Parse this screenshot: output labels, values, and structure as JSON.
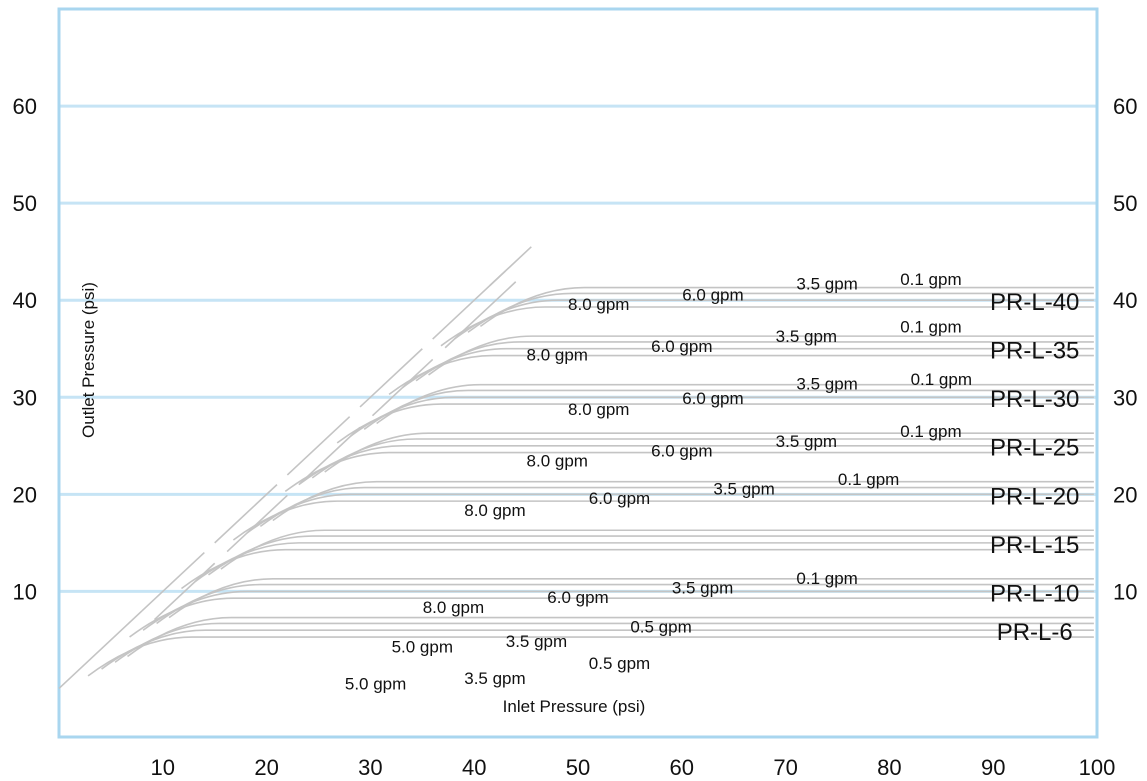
{
  "chart_data": {
    "type": "line",
    "title": "",
    "xlabel": "Inlet Pressure (psi)",
    "ylabel": "Outlet Pressure (psi)",
    "xlim": [
      0,
      100
    ],
    "ylim": [
      -5,
      70
    ],
    "x_ticks": [
      10,
      20,
      30,
      40,
      50,
      60,
      70,
      80,
      90,
      100
    ],
    "y_ticks": [
      10,
      20,
      30,
      40,
      50,
      60
    ],
    "y_ticks_right": [
      10,
      20,
      30,
      40,
      50,
      60
    ],
    "grid": true,
    "series": [
      {
        "name": "PR-L-6",
        "setpoint": 6,
        "flows": [
          {
            "label": "5.0 gpm",
            "x": 30.5,
            "y": 0.5
          },
          {
            "label": "3.5 gpm",
            "x": 42,
            "y": 1.1
          },
          {
            "label": "0.5 gpm",
            "x": 54,
            "y": 2.6
          }
        ]
      },
      {
        "name": "PR-L-10",
        "setpoint": 10,
        "flows": [
          {
            "label": "5.0 gpm",
            "x": 35,
            "y": 4.3
          },
          {
            "label": "3.5 gpm",
            "x": 46,
            "y": 4.9
          },
          {
            "label": "0.5 gpm",
            "x": 58,
            "y": 6.4
          }
        ]
      },
      {
        "name": "PR-L-15",
        "setpoint": 15,
        "flows": [
          {
            "label": "8.0 gpm",
            "x": 38,
            "y": 8.4
          },
          {
            "label": "6.0 gpm",
            "x": 50,
            "y": 9.4
          },
          {
            "label": "3.5 gpm",
            "x": 62,
            "y": 10.4
          },
          {
            "label": "0.1 gpm",
            "x": 74,
            "y": 11.4
          }
        ]
      },
      {
        "name": "PR-L-20",
        "setpoint": 20,
        "flows": [
          {
            "label": "8.0 gpm",
            "x": 42,
            "y": 18.4
          },
          {
            "label": "6.0 gpm",
            "x": 54,
            "y": 19.6
          },
          {
            "label": "3.5 gpm",
            "x": 66,
            "y": 20.6
          },
          {
            "label": "0.1 gpm",
            "x": 78,
            "y": 21.6
          }
        ]
      },
      {
        "name": "PR-L-25",
        "setpoint": 25,
        "flows": [
          {
            "label": "8.0 gpm",
            "x": 48,
            "y": 23.5
          },
          {
            "label": "6.0 gpm",
            "x": 60,
            "y": 24.5
          },
          {
            "label": "3.5 gpm",
            "x": 72,
            "y": 25.5
          },
          {
            "label": "0.1 gpm",
            "x": 84,
            "y": 26.5
          }
        ]
      },
      {
        "name": "PR-L-30",
        "setpoint": 30,
        "flows": [
          {
            "label": "8.0 gpm",
            "x": 52,
            "y": 28.8
          },
          {
            "label": "6.0 gpm",
            "x": 63,
            "y": 29.9
          },
          {
            "label": "3.5 gpm",
            "x": 74,
            "y": 31.4
          },
          {
            "label": "0.1 gpm",
            "x": 85,
            "y": 31.9
          }
        ]
      },
      {
        "name": "PR-L-35",
        "setpoint": 35,
        "flows": [
          {
            "label": "8.0 gpm",
            "x": 48,
            "y": 34.4
          },
          {
            "label": "6.0 gpm",
            "x": 60,
            "y": 35.3
          },
          {
            "label": "3.5 gpm",
            "x": 72,
            "y": 36.3
          },
          {
            "label": "0.1 gpm",
            "x": 84,
            "y": 37.3
          }
        ]
      },
      {
        "name": "PR-L-40",
        "setpoint": 40,
        "flows": [
          {
            "label": "8.0 gpm",
            "x": 52,
            "y": 39.6
          },
          {
            "label": "6.0 gpm",
            "x": 63,
            "y": 40.6
          },
          {
            "label": "3.5 gpm",
            "x": 74,
            "y": 41.7
          },
          {
            "label": "0.1 gpm",
            "x": 84,
            "y": 42.2
          }
        ]
      }
    ],
    "colors": {
      "frame": "#a9d6ef",
      "grid": "#c6e4f5",
      "curves": "#c4c4c4",
      "text": "#111111"
    }
  }
}
